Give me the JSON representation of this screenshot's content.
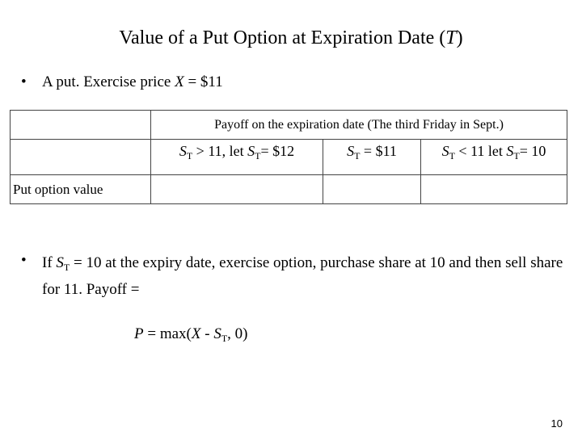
{
  "title": {
    "main": "Value of a Put Option at Expiration Date (",
    "var": "T",
    "close": ")"
  },
  "bullet1": {
    "prefix": "A put. Exercise price ",
    "var": "X",
    "suffix": " = $11"
  },
  "table": {
    "header": "Payoff on the expiration date (The third Friday in Sept.)",
    "columns": [
      {
        "s1": "S",
        "sub1": "T",
        "mid": " > 11, let ",
        "s2": "S",
        "sub2": "T",
        "end": "= $12"
      },
      {
        "s1": "S",
        "sub1": "T",
        "mid": " = $11"
      },
      {
        "s1": "S",
        "sub1": "T",
        "mid": " < 11 let ",
        "s2": "S",
        "sub2": "T",
        "end": "= 10"
      }
    ],
    "row_label": "Put option value"
  },
  "bullet2": {
    "prefix": "If  ",
    "s": "S",
    "sub": "T",
    "suffix": " = 10 at the expiry date, exercise option, purchase share at  10  and then sell share for 11. Payoff ="
  },
  "formula": {
    "p": "P",
    "eq": " = max(",
    "x": "X",
    "minus": " - ",
    "s": "S",
    "sub": "T",
    "end": ", 0)"
  },
  "page_number": "10"
}
